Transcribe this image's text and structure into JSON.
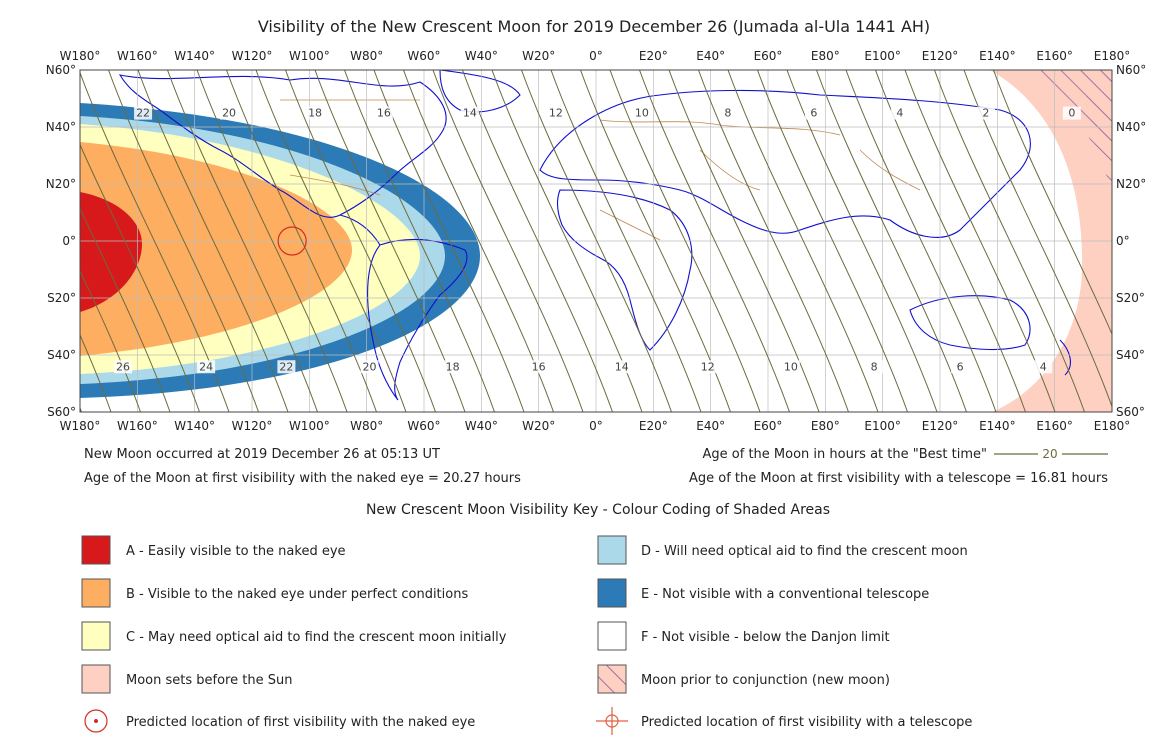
{
  "title": "Visibility of the New Crescent Moon for 2019 December 26 (Jumada al-Ula 1441 AH)",
  "map": {
    "lon_labels": [
      "W180°",
      "W160°",
      "W140°",
      "W120°",
      "W100°",
      "W80°",
      "W60°",
      "W40°",
      "W20°",
      "0°",
      "E20°",
      "E40°",
      "E60°",
      "E80°",
      "E100°",
      "E120°",
      "E140°",
      "E160°",
      "E180°"
    ],
    "lat_labels": [
      "N60°",
      "N40°",
      "N20°",
      "0°",
      "S20°",
      "S40°",
      "S60°"
    ],
    "lon_range": [
      -180,
      180
    ],
    "lat_range": [
      -60,
      60
    ],
    "grid": "every 20°",
    "age_contours_top": [
      {
        "label": "22",
        "lon": -158,
        "lat": 44
      },
      {
        "label": "20",
        "lon": -128,
        "lat": 44
      },
      {
        "label": "18",
        "lon": -98,
        "lat": 44
      },
      {
        "label": "16",
        "lon": -74,
        "lat": 44
      },
      {
        "label": "14",
        "lon": -44,
        "lat": 44
      },
      {
        "label": "12",
        "lon": -14,
        "lat": 44
      },
      {
        "label": "10",
        "lon": 16,
        "lat": 44
      },
      {
        "label": "8",
        "lon": 46,
        "lat": 44
      },
      {
        "label": "6",
        "lon": 76,
        "lat": 44
      },
      {
        "label": "4",
        "lon": 106,
        "lat": 44
      },
      {
        "label": "2",
        "lon": 136,
        "lat": 44
      },
      {
        "label": "0",
        "lon": 166,
        "lat": 44
      }
    ],
    "age_contours_bottom": [
      {
        "label": "26",
        "lon": -165,
        "lat": -45
      },
      {
        "label": "24",
        "lon": -136,
        "lat": -45
      },
      {
        "label": "22",
        "lon": -108,
        "lat": -45
      },
      {
        "label": "20",
        "lon": -79,
        "lat": -45
      },
      {
        "label": "18",
        "lon": -50,
        "lat": -45
      },
      {
        "label": "16",
        "lon": -20,
        "lat": -45
      },
      {
        "label": "14",
        "lon": 9,
        "lat": -45
      },
      {
        "label": "12",
        "lon": 39,
        "lat": -45
      },
      {
        "label": "10",
        "lon": 68,
        "lat": -45
      },
      {
        "label": "8",
        "lon": 97,
        "lat": -45
      },
      {
        "label": "6",
        "lon": 127,
        "lat": -45
      },
      {
        "label": "4",
        "lon": 156,
        "lat": -45
      }
    ],
    "naked_eye_first_visibility": {
      "lon": -106,
      "lat": 0
    }
  },
  "info": {
    "new_moon": "New Moon occurred at 2019 December 26 at 05:13 UT",
    "naked_eye_age": "Age of the Moon at first visibility with the naked eye = 20.27 hours",
    "best_time_label": "Age of the Moon in hours at the \"Best time\"",
    "best_time_sample": "20",
    "telescope_age": "Age of the Moon at first visibility with a telescope = 16.81 hours"
  },
  "key": {
    "title": "New Crescent Moon Visibility Key - Colour Coding of Shaded Areas",
    "items": [
      {
        "label": "A - Easily visible to the naked eye",
        "color": "#d7191c"
      },
      {
        "label": "B - Visible to the naked eye under perfect conditions",
        "color": "#fdae61"
      },
      {
        "label": "C - May need optical aid to find the crescent moon initially",
        "color": "#ffffbf"
      },
      {
        "label": "Moon sets before the Sun",
        "color": "#fdd0c2"
      },
      {
        "label": "Predicted location of first visibility with the naked eye",
        "symbol": "circle-dot"
      },
      {
        "label": "D - Will need optical aid to find the crescent moon",
        "color": "#abd9e9"
      },
      {
        "label": "E - Not visible with a conventional telescope",
        "color": "#2c7bb6"
      },
      {
        "label": "F - Not visible - below the Danjon limit",
        "color": "#ffffff"
      },
      {
        "label": "Moon prior to conjunction (new moon)",
        "symbol": "hatch"
      },
      {
        "label": "Predicted location of first visibility with a telescope",
        "symbol": "crosshair"
      }
    ]
  }
}
